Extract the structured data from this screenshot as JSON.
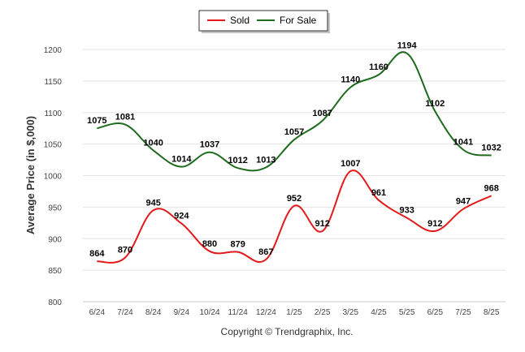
{
  "chart_data": {
    "type": "line",
    "title": "",
    "xlabel": "",
    "ylabel": "Average Price (in $,000)",
    "categories": [
      "6/24",
      "7/24",
      "8/24",
      "9/24",
      "10/24",
      "11/24",
      "12/24",
      "1/25",
      "2/25",
      "3/25",
      "4/25",
      "5/25",
      "6/25",
      "7/25",
      "8/25"
    ],
    "ylim": [
      800,
      1200
    ],
    "yticks": [
      800,
      850,
      900,
      950,
      1000,
      1050,
      1100,
      1150,
      1200
    ],
    "grid": true,
    "legend_position": "top-center",
    "series": [
      {
        "name": "Sold",
        "color": "#e31a1c",
        "values": [
          864,
          870,
          945,
          924,
          880,
          879,
          867,
          952,
          912,
          1007,
          961,
          933,
          912,
          947,
          968
        ]
      },
      {
        "name": "For Sale",
        "color": "#1e6b1e",
        "values": [
          1075,
          1081,
          1040,
          1014,
          1037,
          1012,
          1013,
          1057,
          1087,
          1140,
          1160,
          1194,
          1102,
          1041,
          1032
        ]
      }
    ],
    "footer": "Copyright © Trendgraphix, Inc."
  }
}
